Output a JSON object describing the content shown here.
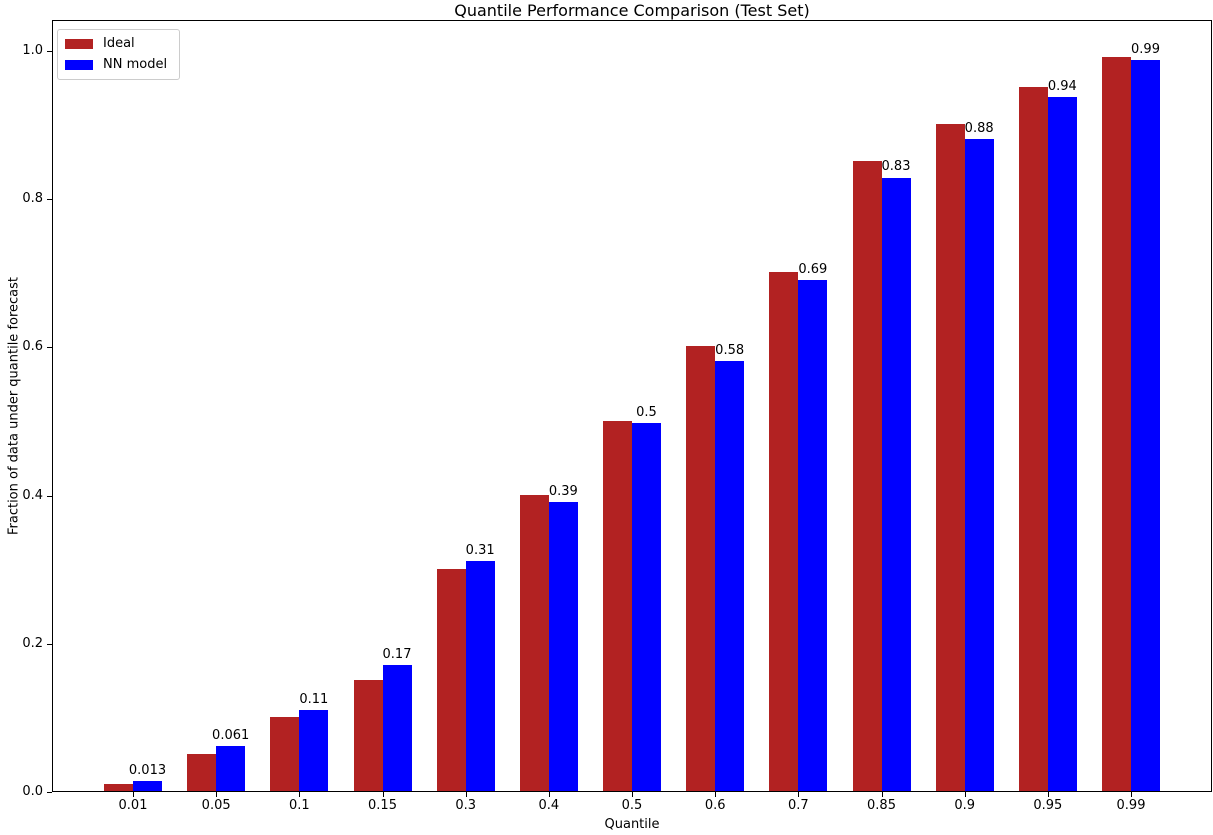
{
  "chart_data": {
    "type": "bar",
    "title": "Quantile Performance Comparison (Test Set)",
    "xlabel": "Quantile",
    "ylabel": "Fraction of data under quantile forecast",
    "categories": [
      "0.01",
      "0.05",
      "0.1",
      "0.15",
      "0.3",
      "0.4",
      "0.5",
      "0.6",
      "0.7",
      "0.85",
      "0.9",
      "0.95",
      "0.99"
    ],
    "series": [
      {
        "name": "Ideal",
        "color": "#B22222",
        "values": [
          0.01,
          0.05,
          0.1,
          0.15,
          0.3,
          0.4,
          0.5,
          0.6,
          0.7,
          0.85,
          0.9,
          0.95,
          0.99
        ]
      },
      {
        "name": "NN model",
        "color": "#0000FF",
        "values": [
          0.013,
          0.061,
          0.11,
          0.17,
          0.31,
          0.39,
          0.497,
          0.58,
          0.69,
          0.828,
          0.88,
          0.937,
          0.987
        ]
      }
    ],
    "bar_labels": [
      "0.013",
      "0.061",
      "0.11",
      "0.17",
      "0.31",
      "0.39",
      "0.5",
      "0.58",
      "0.69",
      "0.83",
      "0.88",
      "0.94",
      "0.99"
    ],
    "yticks": [
      "0.0",
      "0.2",
      "0.4",
      "0.6",
      "0.8",
      "1.0"
    ],
    "ylim": [
      0,
      1.042
    ],
    "grid": false,
    "legend_position": "upper left"
  }
}
